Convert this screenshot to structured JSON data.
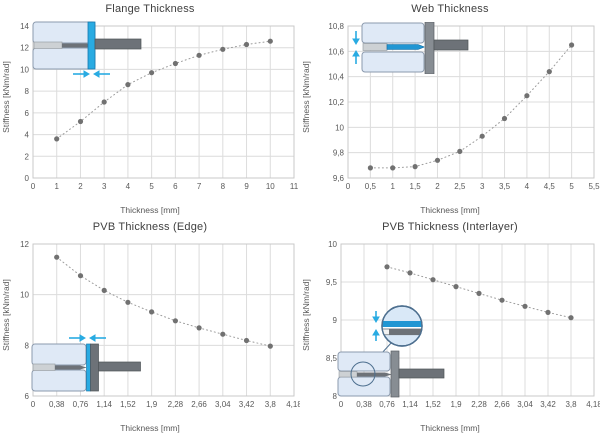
{
  "page": {
    "background": "#ffffff"
  },
  "colors": {
    "grid": "#dcdcdc",
    "plot_border": "#c9c9c9",
    "text": "#595959",
    "title": "#3f3f3f",
    "line": "#9b9b9b",
    "marker": "#717171",
    "accent_cyan": "#29abe2",
    "glass_fill": "#dfe9f6",
    "glass_stroke": "#8b9aad",
    "steel_dark": "#6d7278",
    "steel_mid": "#878d93",
    "filler_gray": "#cdd1d4",
    "web_blue": "#2196d3"
  },
  "chart_data": [
    {
      "type": "scatter",
      "title": "Flange Thickness",
      "xlabel": "Thickness [mm]",
      "ylabel": "Stiffness [kNm/rad]",
      "line_style": "dotted",
      "grid": true,
      "xlim": [
        0,
        11
      ],
      "ylim": [
        0,
        14
      ],
      "x": [
        1,
        2,
        3,
        4,
        5,
        6,
        7,
        8,
        9,
        10
      ],
      "y": [
        3.6,
        5.2,
        7.0,
        8.6,
        9.7,
        10.55,
        11.3,
        11.85,
        12.3,
        12.6
      ],
      "x_ticks": {
        "values": [
          0,
          1,
          2,
          3,
          4,
          5,
          6,
          7,
          8,
          9,
          10,
          11
        ],
        "labels": [
          "0",
          "1",
          "2",
          "3",
          "4",
          "5",
          "6",
          "7",
          "8",
          "9",
          "10",
          "11"
        ]
      },
      "y_ticks": {
        "values": [
          0,
          2,
          4,
          6,
          8,
          10,
          12,
          14
        ],
        "labels": [
          "0",
          "2",
          "4",
          "6",
          "8",
          "10",
          "12",
          "14"
        ]
      }
    },
    {
      "type": "scatter",
      "title": "Web Thickness",
      "xlabel": "Thickness [mm]",
      "ylabel": "Stiffness [kNm/rad]",
      "line_style": "dotted",
      "grid": true,
      "xlim": [
        0,
        5.5
      ],
      "ylim": [
        9.6,
        10.8
      ],
      "x": [
        0.5,
        1,
        1.5,
        2,
        2.5,
        3,
        3.5,
        4,
        4.5,
        5
      ],
      "y": [
        9.68,
        9.68,
        9.69,
        9.74,
        9.81,
        9.93,
        10.07,
        10.25,
        10.44,
        10.65
      ],
      "x_ticks": {
        "values": [
          0,
          0.5,
          1,
          1.5,
          2,
          2.5,
          3,
          3.5,
          4,
          4.5,
          5,
          5.5
        ],
        "labels": [
          "0",
          "0,5",
          "1",
          "1,5",
          "2",
          "2,5",
          "3",
          "3,5",
          "4",
          "4,5",
          "5",
          "5,5"
        ]
      },
      "y_ticks": {
        "values": [
          9.6,
          9.8,
          10,
          10.2,
          10.4,
          10.6,
          10.8
        ],
        "labels": [
          "9,6",
          "9,8",
          "10",
          "10,2",
          "10,4",
          "10,6",
          "10,8"
        ]
      }
    },
    {
      "type": "scatter",
      "title": "PVB Thickness (Edge)",
      "xlabel": "Thickness [mm]",
      "ylabel": "Stiffness [kNm/rad]",
      "line_style": "dotted",
      "grid": true,
      "xlim": [
        0,
        4.18
      ],
      "ylim": [
        6,
        12
      ],
      "x": [
        0.38,
        0.76,
        1.14,
        1.52,
        1.9,
        2.28,
        2.66,
        3.04,
        3.42,
        3.8
      ],
      "y": [
        11.48,
        10.75,
        10.17,
        9.7,
        9.32,
        8.97,
        8.69,
        8.44,
        8.19,
        7.97
      ],
      "x_ticks": {
        "values": [
          0,
          0.38,
          0.76,
          1.14,
          1.52,
          1.9,
          2.28,
          2.66,
          3.04,
          3.42,
          3.8,
          4.18
        ],
        "labels": [
          "0",
          "0,38",
          "0,76",
          "1,14",
          "1,52",
          "1,9",
          "2,28",
          "2,66",
          "3,04",
          "3,42",
          "3,8",
          "4,18"
        ]
      },
      "y_ticks": {
        "values": [
          6,
          8,
          10,
          12
        ],
        "labels": [
          "6",
          "8",
          "10",
          "12"
        ]
      }
    },
    {
      "type": "scatter",
      "title": "PVB Thickness (Interlayer)",
      "xlabel": "Thickness [mm]",
      "ylabel": "Stiffness [kNm/rad]",
      "line_style": "dotted",
      "grid": true,
      "xlim": [
        0,
        4.18
      ],
      "ylim": [
        8,
        10
      ],
      "x": [
        0.76,
        1.14,
        1.52,
        1.9,
        2.28,
        2.66,
        3.04,
        3.42,
        3.8
      ],
      "y": [
        9.7,
        9.62,
        9.53,
        9.44,
        9.35,
        9.26,
        9.18,
        9.1,
        9.03
      ],
      "x_ticks": {
        "values": [
          0,
          0.38,
          0.76,
          1.14,
          1.52,
          1.9,
          2.28,
          2.66,
          3.04,
          3.42,
          3.8,
          4.18
        ],
        "labels": [
          "0",
          "0,38",
          "0,76",
          "1,14",
          "1,52",
          "1,9",
          "2,28",
          "2,66",
          "3,04",
          "3,42",
          "3,8",
          "4,18"
        ]
      },
      "y_ticks": {
        "values": [
          8,
          8.5,
          9,
          9.5,
          10
        ],
        "labels": [
          "8",
          "8,5",
          "9",
          "9,5",
          "10"
        ]
      }
    }
  ]
}
